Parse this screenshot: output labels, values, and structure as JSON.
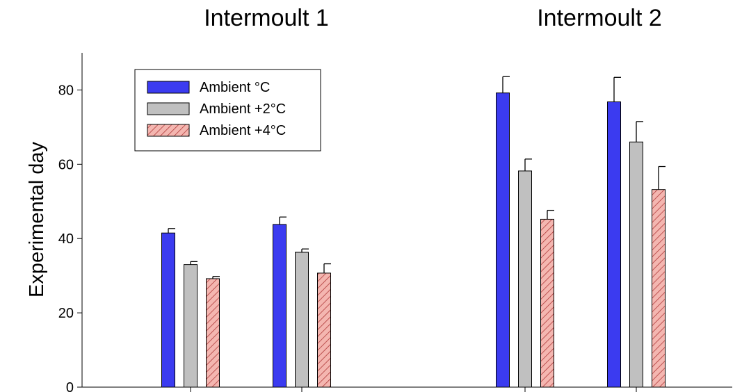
{
  "chart_data": {
    "type": "bar",
    "panel_titles": [
      "Intermoult 1",
      "Intermoult 2"
    ],
    "ylabel": "Experimental day",
    "xlabel": "",
    "ylim": [
      0,
      90
    ],
    "yticks": [
      0,
      20,
      40,
      60,
      80
    ],
    "grid": false,
    "legend_position": "top-left",
    "series": [
      {
        "name": "Ambient °C",
        "color": "#3b3bf0",
        "pattern": "solid",
        "values": [
          41.5,
          43.8,
          79.2,
          76.8
        ],
        "errors": [
          1.2,
          2.0,
          4.4,
          6.6
        ]
      },
      {
        "name": "Ambient +2°C",
        "color": "#c0c0c0",
        "pattern": "solid",
        "values": [
          33.0,
          36.3,
          58.2,
          66.0
        ],
        "errors": [
          0.8,
          0.9,
          3.2,
          5.5
        ]
      },
      {
        "name": "Ambient +4°C",
        "color": "#f4b6b0",
        "pattern": "hatch",
        "values": [
          29.2,
          30.7,
          45.2,
          53.2
        ],
        "errors": [
          0.6,
          2.5,
          2.4,
          6.2
        ]
      }
    ]
  }
}
